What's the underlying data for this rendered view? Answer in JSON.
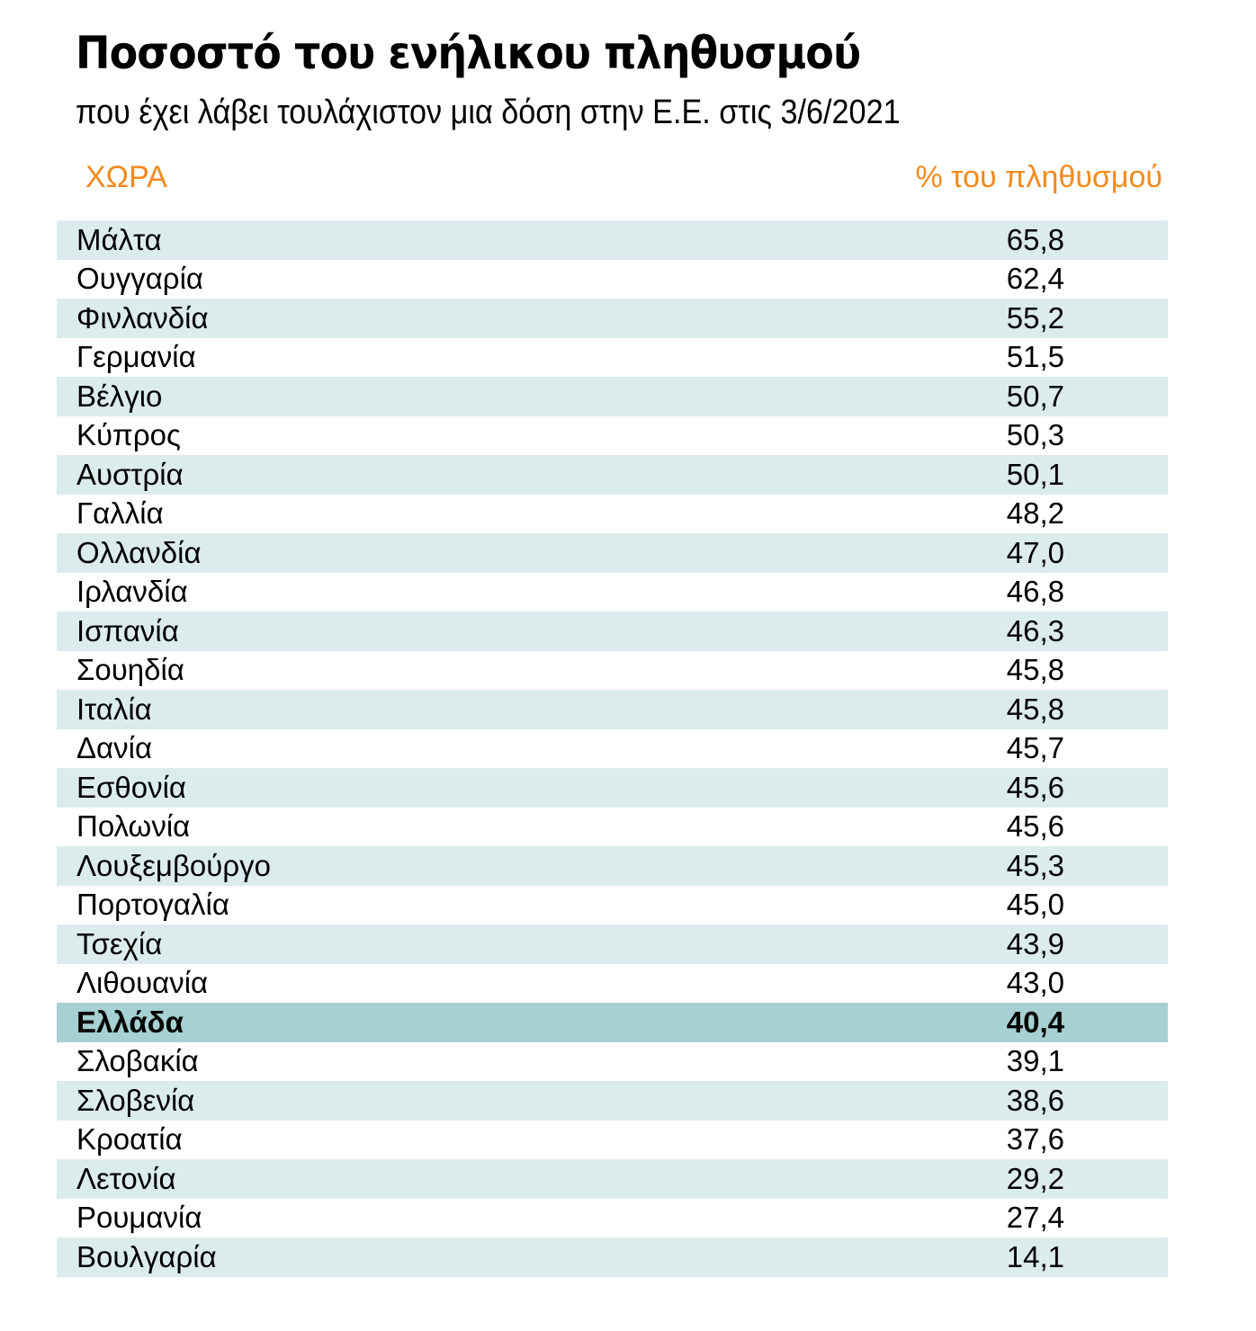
{
  "header": {
    "title": "Ποσοστό του ενήλικου πληθυσμού",
    "subtitle": "που έχει λάβει τουλάχιστον μια δόση στην Ε.Ε. στις 3/6/2021"
  },
  "table": {
    "columns": [
      "ΧΩΡΑ",
      "% του πληθυσμού"
    ],
    "rows": [
      {
        "country": "Μάλτα",
        "value": "65,8"
      },
      {
        "country": "Ουγγαρία",
        "value": "62,4"
      },
      {
        "country": "Φινλανδία",
        "value": "55,2"
      },
      {
        "country": "Γερμανία",
        "value": "51,5"
      },
      {
        "country": "Βέλγιο",
        "value": "50,7"
      },
      {
        "country": "Κύπρος",
        "value": "50,3"
      },
      {
        "country": "Αυστρία",
        "value": "50,1"
      },
      {
        "country": "Γαλλία",
        "value": "48,2"
      },
      {
        "country": "Ολλανδία",
        "value": "47,0"
      },
      {
        "country": "Ιρλανδία",
        "value": "46,8"
      },
      {
        "country": "Ισπανία",
        "value": "46,3"
      },
      {
        "country": "Σουηδία",
        "value": "45,8"
      },
      {
        "country": "Ιταλία",
        "value": "45,8"
      },
      {
        "country": "Δανία",
        "value": "45,7"
      },
      {
        "country": "Εσθονία",
        "value": "45,6"
      },
      {
        "country": "Πολωνία",
        "value": "45,6"
      },
      {
        "country": "Λουξεμβούργο",
        "value": "45,3"
      },
      {
        "country": "Πορτογαλία",
        "value": "45,0"
      },
      {
        "country": "Τσεχία",
        "value": "43,9"
      },
      {
        "country": "Λιθουανία",
        "value": "43,0"
      },
      {
        "country": "Ελλάδα",
        "value": "40,4",
        "highlight": true
      },
      {
        "country": "Σλοβακία",
        "value": "39,1"
      },
      {
        "country": "Σλοβενία",
        "value": "38,6"
      },
      {
        "country": "Κροατία",
        "value": "37,6"
      },
      {
        "country": "Λετονία",
        "value": "29,2"
      },
      {
        "country": "Ρουμανία",
        "value": "27,4"
      },
      {
        "country": "Βουλγαρία",
        "value": "14,1"
      }
    ]
  }
}
